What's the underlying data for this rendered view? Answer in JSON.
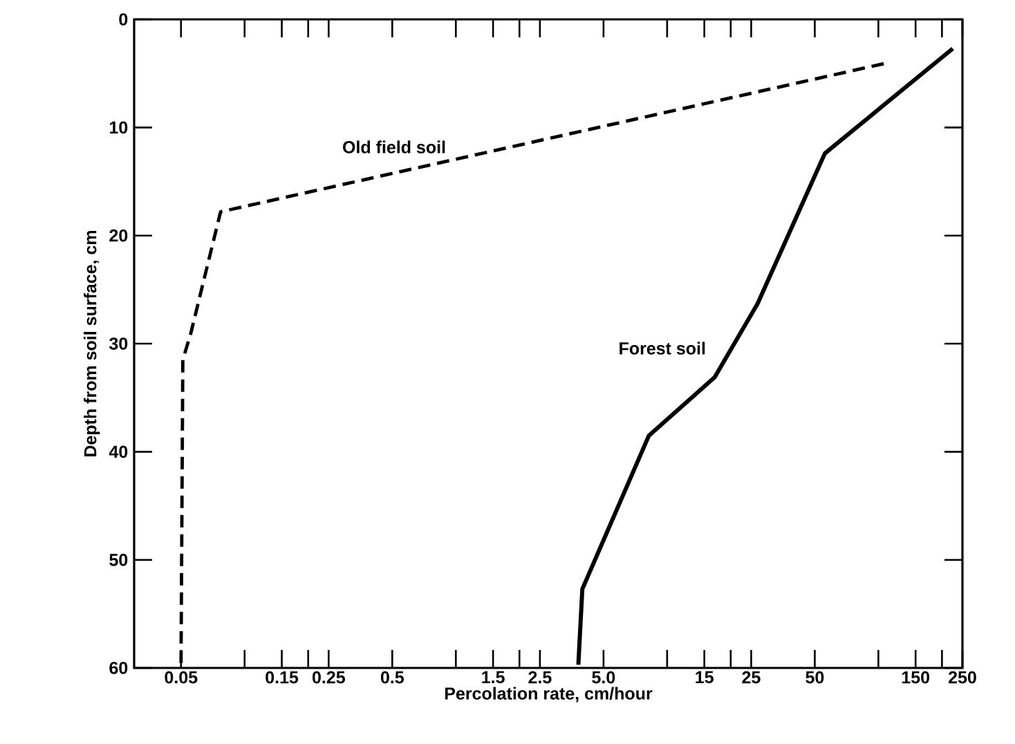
{
  "chart_data": {
    "type": "line",
    "xlabel": "Percolation rate, cm/hour",
    "ylabel": "Depth from soil surface, cm",
    "log": "x",
    "grid": false,
    "legend": false,
    "marker": "none",
    "xlim": [
      0.03,
      250
    ],
    "ylim": [
      60,
      0
    ],
    "xticks": [
      0.05,
      {
        "value": 0.1,
        "label": null
      },
      0.15,
      {
        "value": 0.2,
        "label": null
      },
      0.25,
      0.5,
      {
        "value": 1,
        "label": null
      },
      1.5,
      {
        "value": 2,
        "label": null
      },
      2.5,
      {
        "value": 5,
        "label": "5.0"
      },
      {
        "value": 10,
        "label": null
      },
      15,
      {
        "value": 20,
        "label": null
      },
      25,
      50,
      {
        "value": 100,
        "label": null
      },
      150,
      {
        "value": 200,
        "label": null
      },
      250
    ],
    "yticks": [
      0,
      10,
      20,
      30,
      40,
      50,
      60
    ],
    "series": [
      {
        "name": "Old field soil",
        "color": "#000000",
        "line_style": "dashed",
        "x": [
          106,
          0.077,
          0.0557,
          0.051,
          0.05
        ],
        "values": [
          4.1,
          17.8,
          29,
          31.5,
          60
        ]
      },
      {
        "name": "Forest soil",
        "color": "#000000",
        "line_style": "solid",
        "x": [
          225,
          55.8,
          26.8,
          16.8,
          8.2,
          3.97,
          3.8
        ],
        "values": [
          2.7,
          12.4,
          26.3,
          33.1,
          38.5,
          52.7,
          59.7
        ]
      }
    ]
  }
}
